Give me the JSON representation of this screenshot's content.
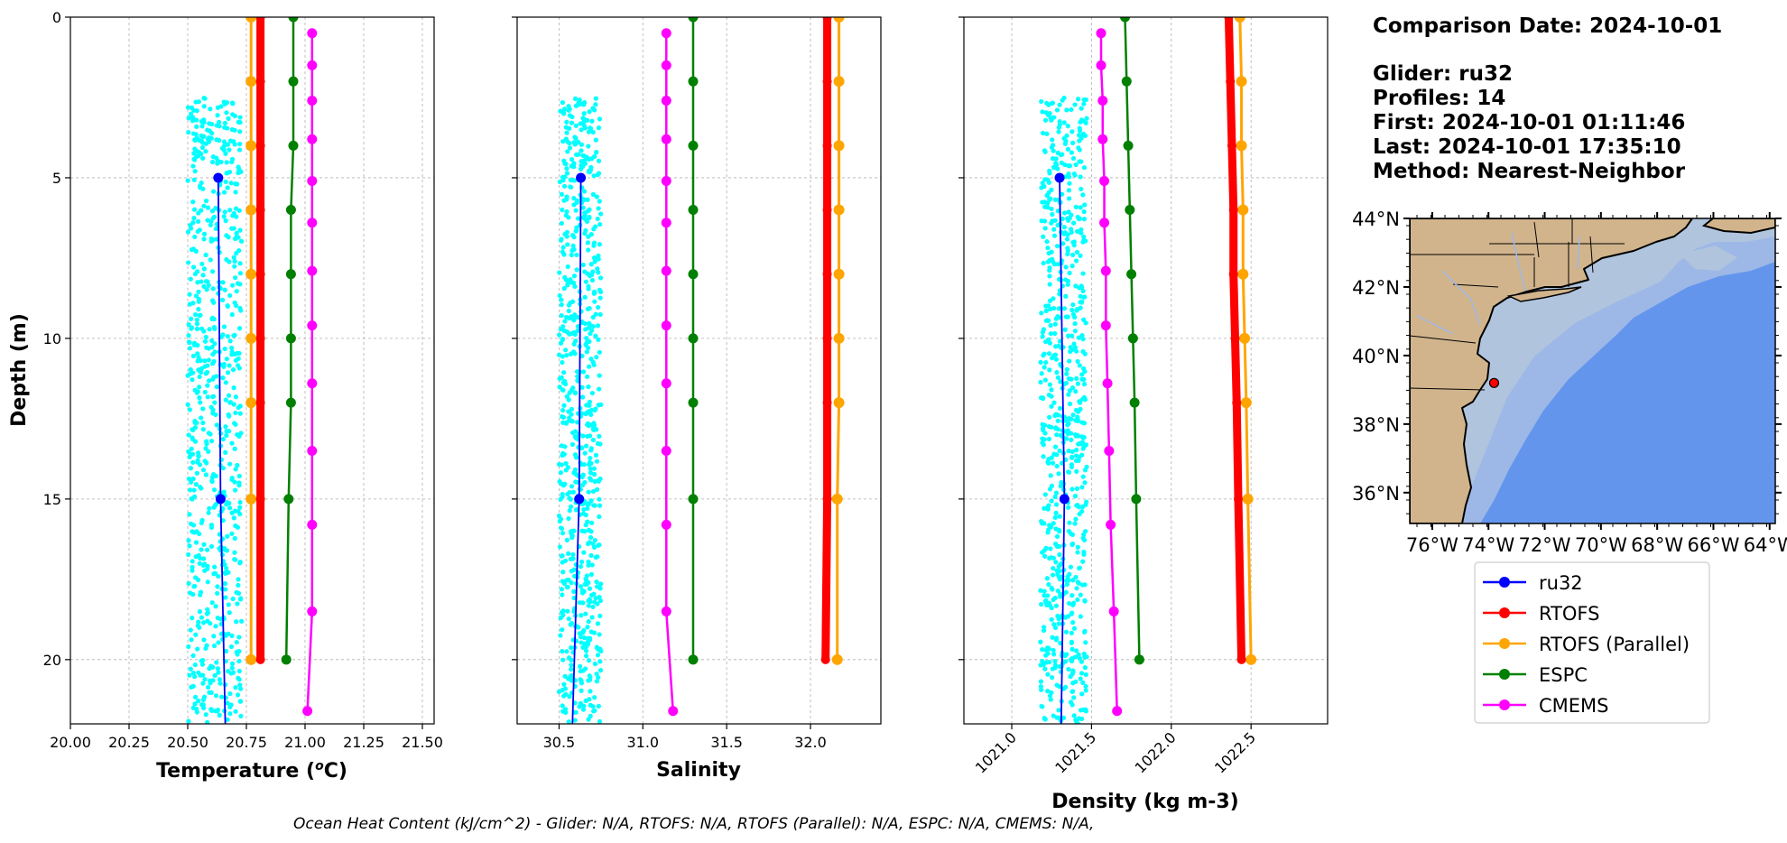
{
  "info": {
    "comparison_date": "Comparison Date: 2024-10-01",
    "glider": "Glider: ru32",
    "profiles": "Profiles: 14",
    "first": "First: 2024-10-01 01:11:46",
    "last": "Last: 2024-10-01 17:35:10",
    "method": "Method: Nearest-Neighbor"
  },
  "footer": "Ocean Heat Content (kJ/cm^2) - Glider: N/A,  RTOFS: N/A,  RTOFS (Parallel): N/A,  ESPC: N/A,  CMEMS: N/A,",
  "colors": {
    "ru32": "#0000ff",
    "rtofs": "#ff0000",
    "rtofs_parallel": "#ffa500",
    "espc": "#008000",
    "cmems": "#ff00ff",
    "glider_scatter": "#00ffff",
    "land": "#d2b48c",
    "shelf": "#b0c4de",
    "mid_shelf": "#9db8e6",
    "deep_ocean": "#6495ed"
  },
  "legend": {
    "items": [
      {
        "key": "ru32",
        "label": "ru32",
        "color": "#0000ff"
      },
      {
        "key": "rtofs",
        "label": "RTOFS",
        "color": "#ff0000"
      },
      {
        "key": "rtofs_parallel",
        "label": "RTOFS (Parallel)",
        "color": "#ffa500"
      },
      {
        "key": "espc",
        "label": "ESPC",
        "color": "#008000"
      },
      {
        "key": "cmems",
        "label": "CMEMS",
        "color": "#ff00ff"
      }
    ]
  },
  "map": {
    "lat_ticks": [
      "44°N",
      "42°N",
      "40°N",
      "38°N",
      "36°N"
    ],
    "lon_ticks": [
      "76°W",
      "74°W",
      "72°W",
      "70°W",
      "68°W",
      "66°W",
      "64°W"
    ],
    "lat_range": [
      35.1,
      44.0
    ],
    "lon_range": [
      -76.8,
      -63.8
    ],
    "glider_position": {
      "lon": -73.8,
      "lat": 39.2
    }
  },
  "chart_data": [
    {
      "type": "line",
      "xlabel": "Temperature (°C)",
      "xlabel_text": "Temperature (",
      "xlabel_sup": "o",
      "xlabel_unit": "C)",
      "ylabel": "Depth (m)",
      "xlim": [
        20.0,
        21.55
      ],
      "ylim": [
        22,
        0
      ],
      "xticks": [
        "20.00",
        "20.25",
        "20.50",
        "20.75",
        "21.00",
        "21.25",
        "21.50"
      ],
      "xtick_values": [
        20.0,
        20.25,
        20.5,
        20.75,
        21.0,
        21.25,
        21.5
      ],
      "yticks": [
        "0",
        "5",
        "10",
        "15",
        "20"
      ],
      "ytick_values": [
        0,
        5,
        10,
        15,
        20
      ],
      "grid": true,
      "scatter_glider": {
        "x_range": [
          20.5,
          20.73
        ],
        "depth_range": [
          2.5,
          22
        ]
      },
      "series": [
        {
          "key": "ru32",
          "name": "ru32",
          "depth": [
            5,
            15,
            22
          ],
          "values": [
            20.63,
            20.64,
            20.66
          ],
          "markers": [
            5,
            15
          ]
        },
        {
          "key": "rtofs",
          "name": "RTOFS",
          "depth": [
            0,
            2,
            4,
            6,
            8,
            10,
            12,
            15,
            20
          ],
          "values": [
            20.81,
            20.81,
            20.81,
            20.81,
            20.81,
            20.81,
            20.81,
            20.81,
            20.81
          ]
        },
        {
          "key": "rtofs_parallel",
          "name": "RTOFS (Parallel)",
          "depth": [
            0,
            2,
            4,
            6,
            8,
            10,
            12,
            15,
            20
          ],
          "values": [
            20.77,
            20.77,
            20.77,
            20.77,
            20.77,
            20.77,
            20.77,
            20.77,
            20.77
          ]
        },
        {
          "key": "espc",
          "name": "ESPC",
          "depth": [
            0,
            2,
            4,
            6,
            8,
            10,
            12,
            15,
            20
          ],
          "values": [
            20.95,
            20.95,
            20.95,
            20.94,
            20.94,
            20.94,
            20.94,
            20.93,
            20.92
          ]
        },
        {
          "key": "cmems",
          "name": "CMEMS",
          "depth": [
            0.5,
            1.5,
            2.6,
            3.8,
            5.1,
            6.4,
            7.9,
            9.6,
            11.4,
            13.5,
            15.8,
            18.5,
            21.6
          ],
          "values": [
            21.03,
            21.03,
            21.03,
            21.03,
            21.03,
            21.03,
            21.03,
            21.03,
            21.03,
            21.03,
            21.03,
            21.03,
            21.01
          ]
        }
      ]
    },
    {
      "type": "line",
      "xlabel": "Salinity",
      "xlim": [
        30.25,
        32.42
      ],
      "ylim": [
        22,
        0
      ],
      "xticks": [
        "30.5",
        "31.0",
        "31.5",
        "32.0"
      ],
      "xtick_values": [
        30.5,
        31.0,
        31.5,
        32.0
      ],
      "yticks": [],
      "ytick_values": [
        0,
        5,
        10,
        15,
        20
      ],
      "grid": true,
      "scatter_glider": {
        "x_range": [
          30.5,
          30.75
        ],
        "depth_range": [
          2.5,
          22
        ]
      },
      "series": [
        {
          "key": "ru32",
          "name": "ru32",
          "depth": [
            5,
            15,
            22
          ],
          "values": [
            30.63,
            30.62,
            30.58
          ],
          "markers": [
            5,
            15
          ]
        },
        {
          "key": "rtofs",
          "name": "RTOFS",
          "depth": [
            0,
            2,
            4,
            6,
            8,
            10,
            12,
            15,
            20
          ],
          "values": [
            32.1,
            32.1,
            32.1,
            32.1,
            32.1,
            32.1,
            32.1,
            32.1,
            32.09
          ]
        },
        {
          "key": "rtofs_parallel",
          "name": "RTOFS (Parallel)",
          "depth": [
            0,
            2,
            4,
            6,
            8,
            10,
            12,
            15,
            20
          ],
          "values": [
            32.17,
            32.17,
            32.17,
            32.17,
            32.17,
            32.17,
            32.17,
            32.16,
            32.16
          ]
        },
        {
          "key": "espc",
          "name": "ESPC",
          "depth": [
            0,
            2,
            4,
            6,
            8,
            10,
            12,
            15,
            20
          ],
          "values": [
            31.3,
            31.3,
            31.3,
            31.3,
            31.3,
            31.3,
            31.3,
            31.3,
            31.3
          ]
        },
        {
          "key": "cmems",
          "name": "CMEMS",
          "depth": [
            0.5,
            1.5,
            2.6,
            3.8,
            5.1,
            6.4,
            7.9,
            9.6,
            11.4,
            13.5,
            15.8,
            18.5,
            21.6
          ],
          "values": [
            31.14,
            31.14,
            31.14,
            31.14,
            31.14,
            31.14,
            31.14,
            31.14,
            31.14,
            31.14,
            31.14,
            31.14,
            31.18
          ]
        }
      ]
    },
    {
      "type": "line",
      "xlabel": "Density (kg m-3)",
      "xlim": [
        1020.7,
        1022.98
      ],
      "ylim": [
        22,
        0
      ],
      "xticks": [
        "1021.0",
        "1021.5",
        "1022.0",
        "1022.5"
      ],
      "xtick_values": [
        1021.0,
        1021.5,
        1022.0,
        1022.5
      ],
      "yticks": [],
      "ytick_values": [
        0,
        5,
        10,
        15,
        20
      ],
      "grid": true,
      "scatter_glider": {
        "x_range": [
          1021.18,
          1021.47
        ],
        "depth_range": [
          2.5,
          22
        ]
      },
      "series": [
        {
          "key": "ru32",
          "name": "ru32",
          "depth": [
            5,
            15,
            22
          ],
          "values": [
            1021.3,
            1021.33,
            1021.31
          ],
          "markers": [
            5,
            15
          ]
        },
        {
          "key": "rtofs",
          "name": "RTOFS",
          "depth": [
            0,
            2,
            4,
            6,
            8,
            10,
            12,
            15,
            20
          ],
          "values": [
            1022.36,
            1022.37,
            1022.38,
            1022.39,
            1022.39,
            1022.4,
            1022.41,
            1022.42,
            1022.44
          ]
        },
        {
          "key": "rtofs_parallel",
          "name": "RTOFS (Parallel)",
          "depth": [
            0,
            2,
            4,
            6,
            8,
            10,
            12,
            15,
            20
          ],
          "values": [
            1022.43,
            1022.44,
            1022.44,
            1022.45,
            1022.45,
            1022.46,
            1022.47,
            1022.48,
            1022.5
          ]
        },
        {
          "key": "espc",
          "name": "ESPC",
          "depth": [
            0,
            2,
            4,
            6,
            8,
            10,
            12,
            15,
            20
          ],
          "values": [
            1021.71,
            1021.72,
            1021.73,
            1021.74,
            1021.75,
            1021.76,
            1021.77,
            1021.78,
            1021.8
          ]
        },
        {
          "key": "cmems",
          "name": "CMEMS",
          "depth": [
            0.5,
            1.5,
            2.6,
            3.8,
            5.1,
            6.4,
            7.9,
            9.6,
            11.4,
            13.5,
            15.8,
            18.5,
            21.6
          ],
          "values": [
            1021.56,
            1021.56,
            1021.57,
            1021.57,
            1021.58,
            1021.58,
            1021.59,
            1021.59,
            1021.6,
            1021.61,
            1021.62,
            1021.64,
            1021.66
          ]
        }
      ]
    }
  ]
}
